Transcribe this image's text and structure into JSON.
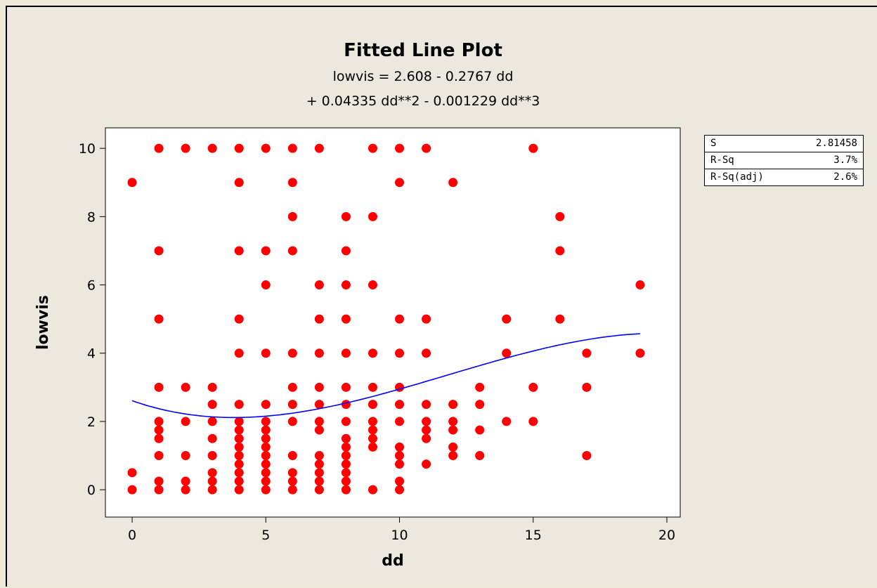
{
  "title": "Fitted Line Plot",
  "subtitle_line1": "lowvis =  2.608 - 0.2767 dd",
  "subtitle_line2": "+ 0.04335 dd**2 - 0.001229 dd**3",
  "colors": {
    "points": "#ff0000",
    "fit_line": "#0000ff",
    "plot_bg": "#ffffff",
    "panel_bg": "#ede8de"
  },
  "stats": [
    {
      "label": "S",
      "value": "2.81458"
    },
    {
      "label": "R-Sq",
      "value": "3.7%"
    },
    {
      "label": "R-Sq(adj)",
      "value": "2.6%"
    }
  ],
  "chart_data": {
    "type": "scatter",
    "xlabel": "dd",
    "ylabel": "lowvis",
    "xlim": [
      -1,
      20.5
    ],
    "ylim": [
      -0.8,
      10.6
    ],
    "xticks": [
      0,
      5,
      10,
      15,
      20
    ],
    "yticks": [
      0,
      2,
      4,
      6,
      8,
      10
    ],
    "grid": false,
    "points": [
      [
        0,
        9
      ],
      [
        0,
        0.5
      ],
      [
        0,
        0
      ],
      [
        1,
        10
      ],
      [
        1,
        7
      ],
      [
        1,
        5
      ],
      [
        1,
        3
      ],
      [
        1,
        2
      ],
      [
        1,
        1.75
      ],
      [
        1,
        1.5
      ],
      [
        1,
        1
      ],
      [
        1,
        0.25
      ],
      [
        1,
        0
      ],
      [
        2,
        10
      ],
      [
        2,
        3
      ],
      [
        2,
        2
      ],
      [
        2,
        1
      ],
      [
        2,
        0.25
      ],
      [
        2,
        0
      ],
      [
        3,
        10
      ],
      [
        3,
        3
      ],
      [
        3,
        2.5
      ],
      [
        3,
        2
      ],
      [
        3,
        1.5
      ],
      [
        3,
        1
      ],
      [
        3,
        0.5
      ],
      [
        3,
        0.25
      ],
      [
        3,
        0
      ],
      [
        4,
        10
      ],
      [
        4,
        9
      ],
      [
        4,
        7
      ],
      [
        4,
        5
      ],
      [
        4,
        4
      ],
      [
        4,
        2.5
      ],
      [
        4,
        2
      ],
      [
        4,
        1.75
      ],
      [
        4,
        1.5
      ],
      [
        4,
        1.25
      ],
      [
        4,
        1
      ],
      [
        4,
        0.75
      ],
      [
        4,
        0.5
      ],
      [
        4,
        0.25
      ],
      [
        4,
        0
      ],
      [
        5,
        10
      ],
      [
        5,
        7
      ],
      [
        5,
        6
      ],
      [
        5,
        4
      ],
      [
        5,
        2.5
      ],
      [
        5,
        2
      ],
      [
        5,
        1.75
      ],
      [
        5,
        1.5
      ],
      [
        5,
        1.25
      ],
      [
        5,
        1
      ],
      [
        5,
        0.75
      ],
      [
        5,
        0.5
      ],
      [
        5,
        0.25
      ],
      [
        5,
        0
      ],
      [
        6,
        10
      ],
      [
        6,
        9
      ],
      [
        6,
        8
      ],
      [
        6,
        7
      ],
      [
        6,
        4
      ],
      [
        6,
        3
      ],
      [
        6,
        2.5
      ],
      [
        6,
        2
      ],
      [
        6,
        1
      ],
      [
        6,
        0.5
      ],
      [
        6,
        0.25
      ],
      [
        6,
        0
      ],
      [
        7,
        10
      ],
      [
        7,
        6
      ],
      [
        7,
        5
      ],
      [
        7,
        4
      ],
      [
        7,
        3
      ],
      [
        7,
        2.5
      ],
      [
        7,
        2
      ],
      [
        7,
        1.75
      ],
      [
        7,
        1
      ],
      [
        7,
        0.75
      ],
      [
        7,
        0.5
      ],
      [
        7,
        0.25
      ],
      [
        7,
        0
      ],
      [
        8,
        8
      ],
      [
        8,
        7
      ],
      [
        8,
        6
      ],
      [
        8,
        5
      ],
      [
        8,
        4
      ],
      [
        8,
        3
      ],
      [
        8,
        2.5
      ],
      [
        8,
        2
      ],
      [
        8,
        1.5
      ],
      [
        8,
        1.25
      ],
      [
        8,
        1
      ],
      [
        8,
        0.75
      ],
      [
        8,
        0.5
      ],
      [
        8,
        0.25
      ],
      [
        8,
        0
      ],
      [
        9,
        10
      ],
      [
        9,
        8
      ],
      [
        9,
        6
      ],
      [
        9,
        4
      ],
      [
        9,
        3
      ],
      [
        9,
        2.5
      ],
      [
        9,
        2
      ],
      [
        9,
        1.75
      ],
      [
        9,
        1.5
      ],
      [
        9,
        1.25
      ],
      [
        9,
        0
      ],
      [
        10,
        10
      ],
      [
        10,
        9
      ],
      [
        10,
        5
      ],
      [
        10,
        4
      ],
      [
        10,
        3
      ],
      [
        10,
        2.5
      ],
      [
        10,
        2
      ],
      [
        10,
        1.25
      ],
      [
        10,
        1
      ],
      [
        10,
        0.75
      ],
      [
        10,
        0.25
      ],
      [
        10,
        0
      ],
      [
        11,
        10
      ],
      [
        11,
        5
      ],
      [
        11,
        4
      ],
      [
        11,
        2.5
      ],
      [
        11,
        2
      ],
      [
        11,
        1.75
      ],
      [
        11,
        1.5
      ],
      [
        11,
        0.75
      ],
      [
        12,
        9
      ],
      [
        12,
        2.5
      ],
      [
        12,
        2
      ],
      [
        12,
        1.75
      ],
      [
        12,
        1.25
      ],
      [
        12,
        1
      ],
      [
        13,
        3
      ],
      [
        13,
        2.5
      ],
      [
        13,
        1.75
      ],
      [
        13,
        1
      ],
      [
        14,
        5
      ],
      [
        14,
        4
      ],
      [
        14,
        2
      ],
      [
        15,
        10
      ],
      [
        15,
        3
      ],
      [
        15,
        2
      ],
      [
        16,
        8
      ],
      [
        16,
        7
      ],
      [
        16,
        5
      ],
      [
        17,
        4
      ],
      [
        17,
        3
      ],
      [
        17,
        1
      ],
      [
        19,
        6
      ],
      [
        19,
        4
      ]
    ],
    "fit": {
      "type": "cubic",
      "coefficients": [
        2.608,
        -0.2767,
        0.04335,
        -0.001229
      ],
      "x_range": [
        0,
        19
      ]
    }
  }
}
